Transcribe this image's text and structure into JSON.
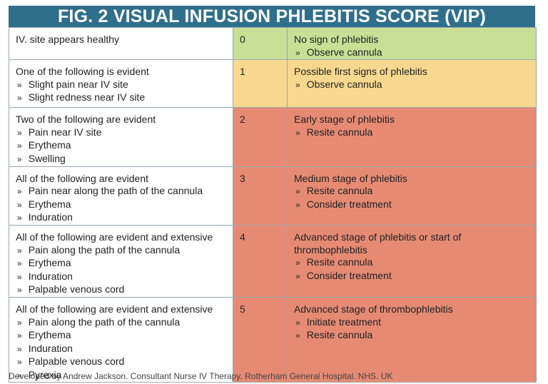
{
  "header": {
    "title": "FIG. 2 VISUAL INFUSION PHLEBITIS SCORE (VIP)"
  },
  "table": {
    "rows": [
      {
        "criteria": {
          "heading": "IV. site appears healthy",
          "items": []
        },
        "score": 0,
        "action": {
          "heading": "No sign of phlebitis",
          "items": [
            "Observe cannula"
          ]
        }
      },
      {
        "criteria": {
          "heading": "One of the following is evident",
          "items": [
            "Slight pain near IV site",
            "Slight redness near IV site"
          ]
        },
        "score": 1,
        "action": {
          "heading": "Possible first signs of phlebitis",
          "items": [
            "Observe cannula"
          ]
        }
      },
      {
        "criteria": {
          "heading": "Two of the following are evident",
          "items": [
            "Pain near IV site",
            "Erythema",
            "Swelling"
          ]
        },
        "score": 2,
        "action": {
          "heading": "Early stage of phlebitis",
          "items": [
            "Resite cannula"
          ]
        }
      },
      {
        "criteria": {
          "heading": "All of the following are evident",
          "items": [
            "Pain near along the path of the cannula",
            "Erythema",
            "Induration"
          ]
        },
        "score": 3,
        "action": {
          "heading": "Medium stage of phlebitis",
          "items": [
            "Resite cannula",
            "Consider treatment"
          ]
        }
      },
      {
        "criteria": {
          "heading": "All of the following are evident and extensive",
          "items": [
            "Pain along the path of the cannula",
            "Erythema",
            "Induration",
            "Palpable venous cord"
          ]
        },
        "score": 4,
        "action": {
          "heading": "Advanced stage of phlebitis or start of thrombophlebitis",
          "items": [
            "Resite cannula",
            "Consider treatment"
          ]
        }
      },
      {
        "criteria": {
          "heading": "All of the following are evident and extensive",
          "items": [
            "Pain along the path of the cannula",
            "Erythema",
            "Induration",
            "Palpable venous cord",
            "Pyrexia"
          ]
        },
        "score": 5,
        "action": {
          "heading": "Advanced stage of thrombophlebitis",
          "items": [
            "Initiate treatment",
            "Resite cannula"
          ]
        }
      }
    ]
  },
  "footer": "Developed by Andrew Jackson. Consultant Nurse IV Therapy. Rotherham General Hospital. NHS. UK"
}
